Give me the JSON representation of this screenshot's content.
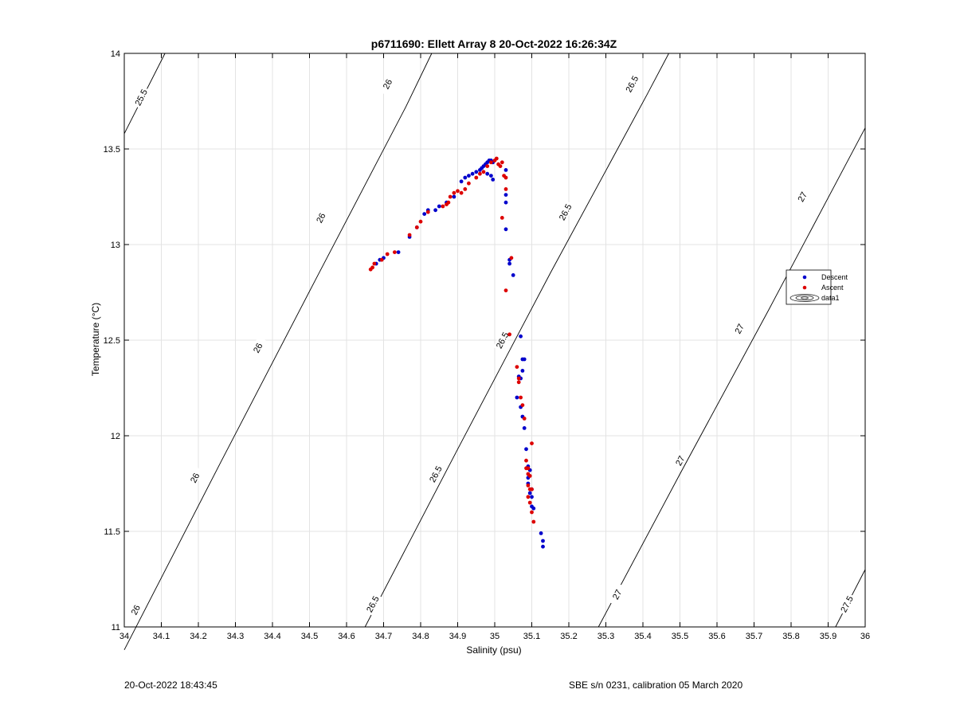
{
  "footer": {
    "date": "20-Oct-2022 18:43:45",
    "instrument": "SBE s/n 0231, calibration 05 March 2020"
  },
  "chart_data": {
    "type": "scatter",
    "title": "p6711690: Ellett Array 8 20-Oct-2022 16:26:34Z",
    "xlabel": "Salinity (psu)",
    "ylabel": "Temperature (°C)",
    "xlim": [
      34,
      36
    ],
    "ylim": [
      11,
      14
    ],
    "xticks": [
      34,
      34.1,
      34.2,
      34.3,
      34.4,
      34.5,
      34.6,
      34.7,
      34.8,
      34.9,
      35,
      35.1,
      35.2,
      35.3,
      35.4,
      35.5,
      35.6,
      35.7,
      35.8,
      35.9,
      36
    ],
    "xtick_labels": [
      "34",
      "34.1",
      "34.2",
      "34.3",
      "34.4",
      "34.5",
      "34.6",
      "34.7",
      "34.8",
      "34.9",
      "35",
      "35.1",
      "35.2",
      "35.3",
      "35.4",
      "35.5",
      "35.6",
      "35.7",
      "35.8",
      "35.9",
      "36"
    ],
    "yticks": [
      11,
      11.5,
      12,
      12.5,
      13,
      13.5,
      14
    ],
    "ytick_labels": [
      "11",
      "11.5",
      "12",
      "12.5",
      "13",
      "13.5",
      "14"
    ],
    "grid": true,
    "legend_position": "right",
    "legend": [
      "Descent",
      "Ascent",
      "data1"
    ],
    "contours": [
      {
        "level": "25.5",
        "points": [
          [
            34.0,
            13.58
          ],
          [
            34.11,
            14.0
          ]
        ],
        "labels": [
          {
            "x": 34.045,
            "y": 13.77,
            "text": "25.5"
          }
        ]
      },
      {
        "level": "26",
        "points": [
          [
            34.0,
            10.88
          ],
          [
            34.26,
            11.86
          ],
          [
            34.52,
            12.83
          ],
          [
            34.76,
            13.72
          ],
          [
            34.83,
            14.0
          ]
        ],
        "labels": [
          {
            "x": 34.03,
            "y": 11.09,
            "text": "26"
          },
          {
            "x": 34.19,
            "y": 11.78,
            "text": "26"
          },
          {
            "x": 34.36,
            "y": 12.46,
            "text": "26"
          },
          {
            "x": 34.53,
            "y": 13.14,
            "text": "26"
          },
          {
            "x": 34.71,
            "y": 13.84,
            "text": "26"
          }
        ]
      },
      {
        "level": "26.5",
        "points": [
          [
            34.65,
            11.0
          ],
          [
            34.9,
            11.93
          ],
          [
            35.15,
            12.85
          ],
          [
            35.41,
            13.78
          ],
          [
            35.47,
            14.0
          ]
        ],
        "labels": [
          {
            "x": 34.67,
            "y": 11.12,
            "text": "26.5"
          },
          {
            "x": 34.84,
            "y": 11.8,
            "text": "26.5"
          },
          {
            "x": 35.02,
            "y": 12.5,
            "text": "26.5"
          },
          {
            "x": 35.19,
            "y": 13.17,
            "text": "26.5"
          },
          {
            "x": 35.37,
            "y": 13.84,
            "text": "26.5"
          }
        ]
      },
      {
        "level": "27",
        "points": [
          [
            35.28,
            11.0
          ],
          [
            35.5,
            11.8
          ],
          [
            35.74,
            12.66
          ],
          [
            36.0,
            13.61
          ]
        ],
        "labels": [
          {
            "x": 35.33,
            "y": 11.17,
            "text": "27"
          },
          {
            "x": 35.5,
            "y": 11.87,
            "text": "27"
          },
          {
            "x": 35.66,
            "y": 12.56,
            "text": "27"
          },
          {
            "x": 35.83,
            "y": 13.25,
            "text": "27"
          }
        ]
      },
      {
        "level": "27.5",
        "points": [
          [
            35.92,
            11.0
          ],
          [
            36.0,
            11.3
          ]
        ],
        "labels": [
          {
            "x": 35.95,
            "y": 11.12,
            "text": "27.5"
          }
        ]
      }
    ],
    "series": [
      {
        "name": "Descent",
        "color": "#0000cc",
        "x": [
          34.68,
          34.69,
          34.7,
          34.74,
          34.77,
          34.79,
          34.81,
          34.82,
          34.84,
          34.85,
          34.87,
          34.89,
          34.91,
          34.92,
          34.93,
          34.94,
          34.95,
          34.96,
          34.965,
          34.97,
          34.975,
          34.98,
          34.985,
          34.99,
          34.995,
          34.98,
          34.99,
          34.995,
          35.03,
          35.03,
          35.03,
          35.03,
          35.04,
          35.05,
          35.04,
          35.07,
          35.075,
          35.08,
          35.075,
          35.07,
          35.065,
          35.06,
          35.07,
          35.075,
          35.08,
          35.085,
          35.09,
          35.095,
          35.09,
          35.09,
          35.1,
          35.1,
          35.095,
          35.1,
          35.105,
          35.125,
          35.13,
          35.13
        ],
        "y": [
          12.9,
          12.92,
          12.93,
          12.96,
          13.04,
          13.09,
          13.16,
          13.18,
          13.18,
          13.2,
          13.22,
          13.25,
          13.33,
          13.35,
          13.36,
          13.37,
          13.38,
          13.39,
          13.4,
          13.41,
          13.42,
          13.43,
          13.44,
          13.44,
          13.43,
          13.37,
          13.36,
          13.34,
          13.39,
          13.26,
          13.22,
          13.08,
          12.92,
          12.84,
          12.9,
          12.52,
          12.4,
          12.4,
          12.34,
          12.3,
          12.31,
          12.2,
          12.15,
          12.1,
          12.04,
          11.93,
          11.84,
          11.82,
          11.78,
          11.75,
          11.72,
          11.68,
          11.7,
          11.63,
          11.62,
          11.49,
          11.45,
          11.42
        ]
      },
      {
        "name": "Ascent",
        "color": "#dd0000",
        "x": [
          34.665,
          34.67,
          34.675,
          34.695,
          34.71,
          34.73,
          34.77,
          34.79,
          34.8,
          34.82,
          34.86,
          34.87,
          34.875,
          34.88,
          34.89,
          34.9,
          34.91,
          34.92,
          34.93,
          34.95,
          34.96,
          34.97,
          34.98,
          34.99,
          35.0,
          35.005,
          35.01,
          35.015,
          35.02,
          35.025,
          35.03,
          35.03,
          35.02,
          35.03,
          35.04,
          35.045,
          35.06,
          35.065,
          35.065,
          35.07,
          35.075,
          35.08,
          35.085,
          35.09,
          35.095,
          35.1,
          35.085,
          35.09,
          35.09,
          35.095,
          35.1,
          35.09,
          35.095,
          35.1,
          35.105
        ],
        "y": [
          12.87,
          12.88,
          12.9,
          12.92,
          12.95,
          12.96,
          13.05,
          13.09,
          13.12,
          13.17,
          13.2,
          13.21,
          13.22,
          13.25,
          13.27,
          13.28,
          13.27,
          13.29,
          13.32,
          13.35,
          13.37,
          13.38,
          13.41,
          13.43,
          13.44,
          13.45,
          13.42,
          13.41,
          13.43,
          13.36,
          13.35,
          13.29,
          13.14,
          12.76,
          12.53,
          12.93,
          12.36,
          12.3,
          12.28,
          12.2,
          12.16,
          12.09,
          11.87,
          11.83,
          11.79,
          11.96,
          11.83,
          11.8,
          11.74,
          11.72,
          11.72,
          11.68,
          11.65,
          11.6,
          11.55
        ]
      }
    ]
  }
}
